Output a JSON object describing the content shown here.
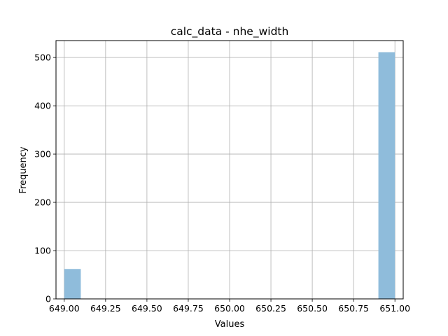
{
  "chart_data": {
    "type": "bar",
    "title": "calc_data - nhe_width",
    "xlabel": "Values",
    "ylabel": "Frequency",
    "xlim": [
      648.95,
      651.05
    ],
    "ylim": [
      0,
      535
    ],
    "xticks": [
      649.0,
      649.25,
      649.5,
      649.75,
      650.0,
      650.25,
      650.5,
      650.75,
      651.0
    ],
    "xtick_labels": [
      "649.00",
      "649.25",
      "649.50",
      "649.75",
      "650.00",
      "650.25",
      "650.50",
      "650.75",
      "651.00"
    ],
    "yticks": [
      0,
      100,
      200,
      300,
      400,
      500
    ],
    "ytick_labels": [
      "0",
      "100",
      "200",
      "300",
      "400",
      "500"
    ],
    "grid": true,
    "bin_width": 0.1,
    "bins": [
      {
        "x0": 649.0,
        "x1": 649.1,
        "value": 62
      },
      {
        "x0": 650.9,
        "x1": 651.0,
        "value": 511
      }
    ],
    "bar_color": "#8fbcdb"
  }
}
